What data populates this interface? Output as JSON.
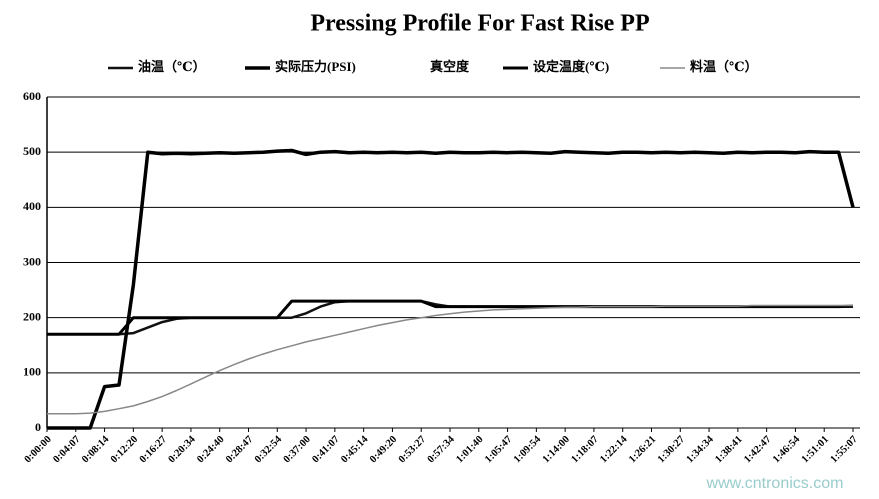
{
  "chart_data": {
    "type": "line",
    "title": "Pressing  Profile  For Fast Rise PP",
    "watermark": "www.cntronics.com",
    "categories": [
      "0:00:00",
      null,
      "0:04:07",
      null,
      "0:08:14",
      null,
      "0:12:20",
      null,
      "0:16:27",
      null,
      "0:20:34",
      null,
      "0:24:40",
      null,
      "0:28:47",
      null,
      "0:32:54",
      null,
      "0:37:00",
      null,
      "0:41:07",
      null,
      "0:45:14",
      null,
      "0:49:20",
      null,
      "0:53:27",
      null,
      "0:57:34",
      null,
      "1:01:40",
      null,
      "1:05:47",
      null,
      "1:09:54",
      null,
      "1:14:00",
      null,
      "1:18:07",
      null,
      "1:22:14",
      null,
      "1:26:21",
      null,
      "1:30:27",
      null,
      "1:34:34",
      null,
      "1:38:41",
      null,
      "1:42:47",
      null,
      "1:46:54",
      null,
      "1:51:01",
      null,
      "1:55:07"
    ],
    "series": [
      {
        "name": "油温（℃）",
        "color": "#111111",
        "values": [
          170,
          170,
          170,
          170,
          170,
          170,
          172,
          182,
          192,
          198,
          200,
          200,
          200,
          200,
          200,
          200,
          200,
          200,
          208,
          220,
          228,
          230,
          230,
          230,
          230,
          230,
          230,
          224,
          220,
          220,
          220,
          220,
          220,
          220,
          220,
          220,
          220,
          220,
          220,
          220,
          220,
          220,
          220,
          220,
          220,
          220,
          220,
          220,
          220,
          220,
          220,
          220,
          220,
          220,
          220,
          220,
          220
        ]
      },
      {
        "name": "实际压力(PSI)",
        "color": "#000000",
        "values": [
          0,
          0,
          0,
          0,
          75,
          78,
          260,
          500,
          497,
          498,
          497,
          498,
          499,
          498,
          499,
          500,
          502,
          503,
          496,
          500,
          501,
          499,
          500,
          499,
          500,
          499,
          500,
          498,
          500,
          499,
          499,
          500,
          499,
          500,
          499,
          498,
          501,
          500,
          499,
          498,
          500,
          500,
          499,
          500,
          499,
          500,
          499,
          498,
          500,
          499,
          500,
          500,
          499,
          501,
          500,
          500,
          400
        ]
      },
      {
        "name": "真空度",
        "color": "#ffffff",
        "values": [
          null,
          null,
          null,
          null,
          null,
          null,
          null,
          null,
          null,
          null,
          null,
          null,
          null,
          null,
          null,
          null,
          null,
          null,
          null,
          null,
          null,
          null,
          null,
          null,
          null,
          null,
          null,
          null,
          null,
          null,
          null,
          null,
          null,
          null,
          null,
          null,
          null,
          null,
          null,
          null,
          null,
          null,
          null,
          null,
          null,
          null,
          null,
          null,
          null,
          null,
          null,
          null,
          null,
          null,
          null,
          null,
          null
        ]
      },
      {
        "name": "设定温度(℃)",
        "color": "#000000",
        "values": [
          170,
          170,
          170,
          170,
          170,
          170,
          200,
          200,
          200,
          200,
          200,
          200,
          200,
          200,
          200,
          200,
          200,
          230,
          230,
          230,
          230,
          230,
          230,
          230,
          230,
          230,
          230,
          220,
          220,
          220,
          220,
          220,
          220,
          220,
          220,
          220,
          220,
          220,
          220,
          220,
          220,
          220,
          220,
          220,
          220,
          220,
          220,
          220,
          220,
          220,
          220,
          220,
          220,
          220,
          220,
          220,
          221
        ]
      },
      {
        "name": "料温（℃）",
        "color": "#888888",
        "values": [
          26,
          26,
          26,
          27,
          30,
          35,
          40,
          48,
          57,
          68,
          80,
          92,
          104,
          115,
          125,
          134,
          142,
          149,
          156,
          162,
          168,
          174,
          180,
          186,
          191,
          196,
          200,
          204,
          207,
          210,
          212,
          214,
          215,
          216,
          217,
          218,
          219,
          219,
          220,
          220,
          220,
          220,
          220,
          221,
          221,
          221,
          221,
          221,
          221,
          222,
          222,
          222,
          222,
          222,
          222,
          222,
          222
        ]
      }
    ],
    "ylim": [
      0,
      600
    ],
    "yticks": [
      0,
      100,
      200,
      300,
      400,
      500,
      600
    ],
    "grid": true
  }
}
